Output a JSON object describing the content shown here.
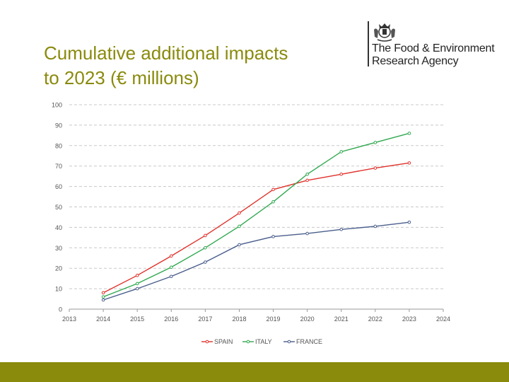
{
  "slide": {
    "title_line1": "Cumulative additional impacts",
    "title_line2": "to 2023 (€ millions)"
  },
  "logo": {
    "line1": "The Food & Environment",
    "line2": "Research Agency",
    "emblem_icon": "royal-crest-icon"
  },
  "colors": {
    "title": "#8a8a0d",
    "footer_bar": "#8a8a0d",
    "spain": "#e0312a",
    "italy": "#2fa84f",
    "france": "#4a5e8c",
    "grid": "#c8c8c8"
  },
  "chart_data": {
    "type": "line",
    "x": [
      2014,
      2015,
      2016,
      2017,
      2018,
      2019,
      2020,
      2021,
      2022,
      2023
    ],
    "x_ticks": [
      2013,
      2014,
      2015,
      2016,
      2017,
      2018,
      2019,
      2020,
      2021,
      2022,
      2023,
      2024
    ],
    "y_ticks": [
      0,
      10,
      20,
      30,
      40,
      50,
      60,
      70,
      80,
      90,
      100
    ],
    "xlim": [
      2013,
      2024
    ],
    "ylim": [
      0,
      100
    ],
    "grid": "horizontal-dashed",
    "legend_position": "bottom",
    "series": [
      {
        "name": "SPAIN",
        "color": "#e0312a",
        "values": [
          8,
          16.5,
          26,
          36,
          47,
          58.5,
          63,
          66,
          69,
          71.5
        ]
      },
      {
        "name": "ITALY",
        "color": "#2fa84f",
        "values": [
          6,
          12.5,
          20.5,
          30,
          40.5,
          52.5,
          66,
          77,
          81.5,
          86
        ]
      },
      {
        "name": "FRANCE",
        "color": "#4a5e8c",
        "values": [
          4.5,
          10,
          16,
          23,
          31.5,
          35.5,
          37,
          39,
          40.5,
          42.5
        ]
      }
    ]
  }
}
